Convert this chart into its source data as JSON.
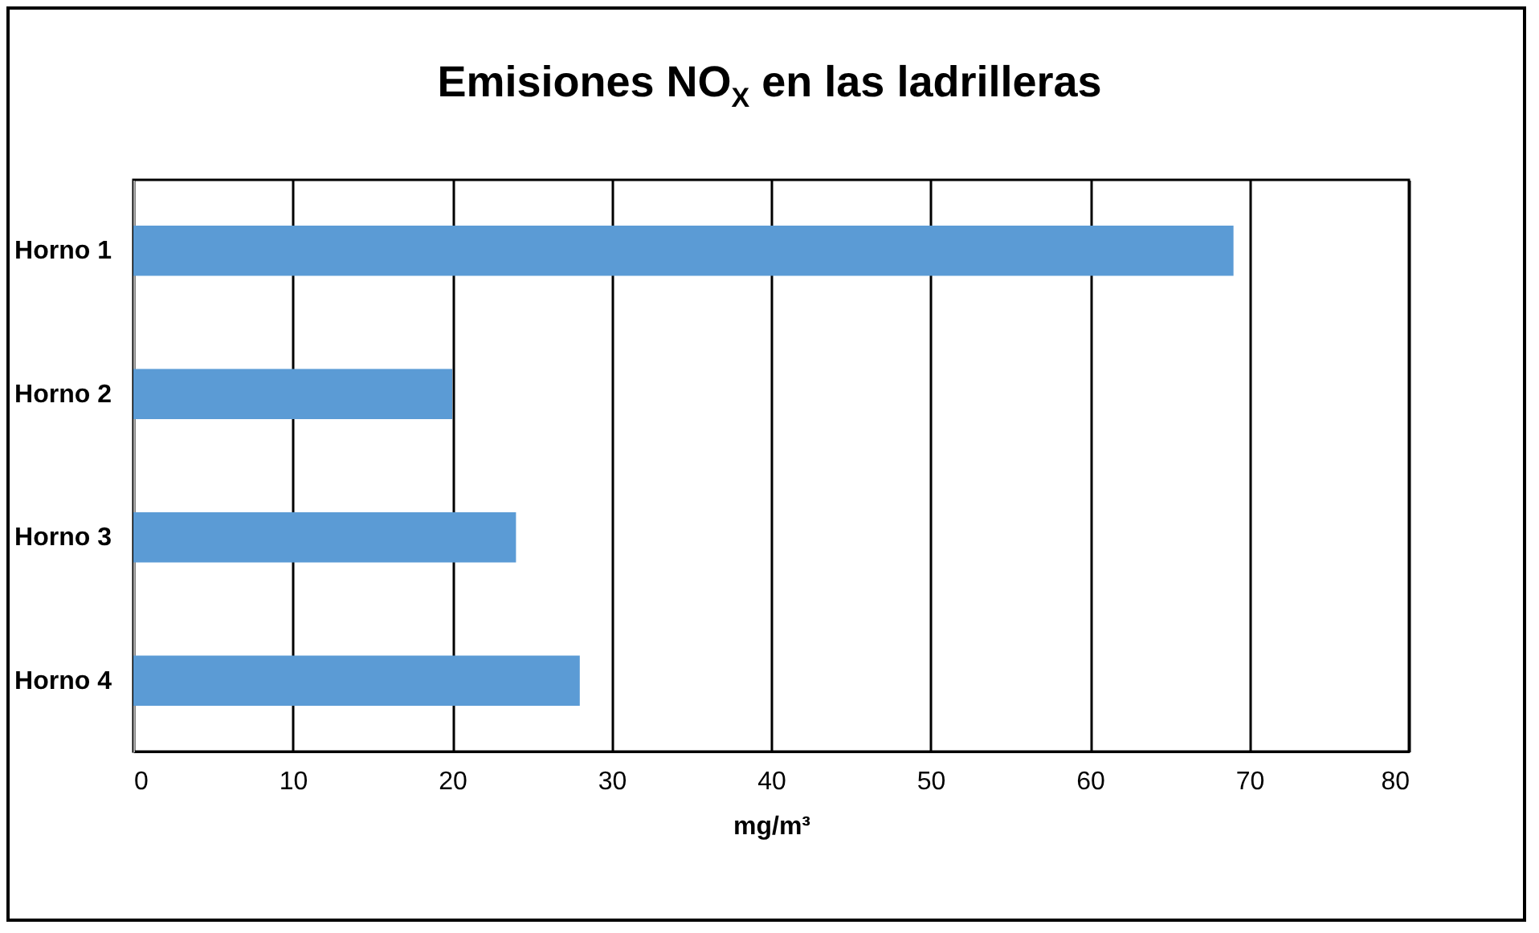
{
  "chart_data": {
    "type": "bar",
    "orientation": "horizontal",
    "title": "Emisiones NO$_{X}$ en las ladrilleras",
    "xlabel": "mg/m³",
    "categories": [
      "Horno 1",
      "Horno 2",
      "Horno 3",
      "Horno 4"
    ],
    "values": [
      69,
      20,
      24,
      28
    ],
    "color": "#5b9bd5",
    "xlim": [
      0,
      80
    ],
    "xticks": [
      0,
      10,
      20,
      30,
      40,
      50,
      60,
      70,
      80
    ],
    "grid": "x"
  }
}
